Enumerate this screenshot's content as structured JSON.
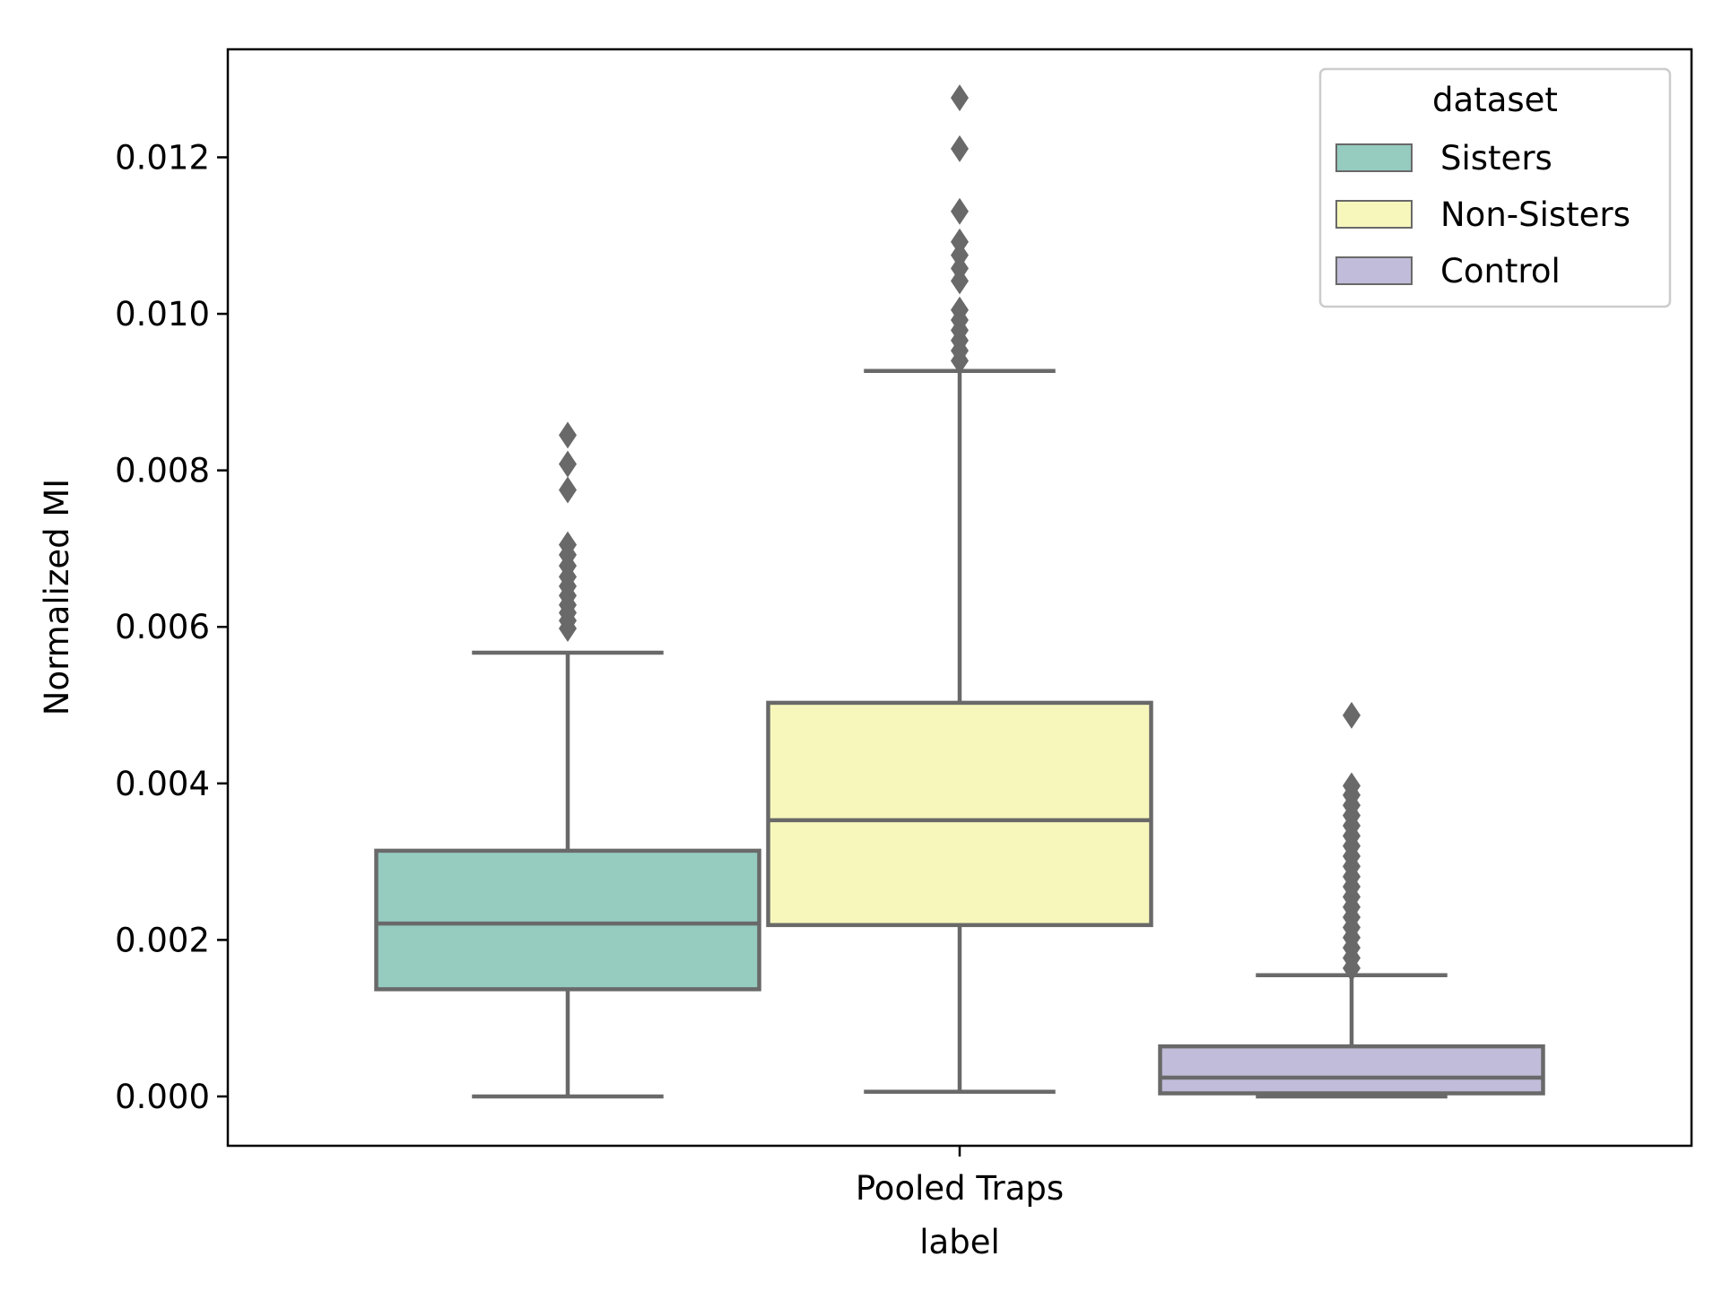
{
  "chart_data": {
    "type": "box",
    "xlabel": "label",
    "ylabel": "Normalized MI",
    "categories": [
      "Pooled Traps"
    ],
    "ylim": [
      -0.00063,
      0.01338
    ],
    "yticks": [
      0.0,
      0.002,
      0.004,
      0.006,
      0.008,
      0.01,
      0.012
    ],
    "ytick_labels": [
      "0.000",
      "0.002",
      "0.004",
      "0.006",
      "0.008",
      "0.010",
      "0.012"
    ],
    "grid": false,
    "legend": {
      "title": "dataset",
      "position": "top-right"
    },
    "series": [
      {
        "name": "Sisters",
        "color": "#96cbc0",
        "whisker_low": 0.0,
        "q1": 0.00137,
        "median": 0.00221,
        "q3": 0.00314,
        "whisker_high": 0.00567,
        "outliers": [
          0.00845,
          0.00808,
          0.00775,
          0.00705,
          0.00692,
          0.00678,
          0.00664,
          0.00652,
          0.0064,
          0.00628,
          0.00618,
          0.00608,
          0.00598
        ]
      },
      {
        "name": "Non-Sisters",
        "color": "#f7f7bc",
        "whisker_low": 6e-05,
        "q1": 0.00219,
        "median": 0.00353,
        "q3": 0.00503,
        "whisker_high": 0.00927,
        "outliers": [
          0.01276,
          0.01211,
          0.01131,
          0.01092,
          0.01075,
          0.01058,
          0.01042,
          0.01005,
          0.00992,
          0.00979,
          0.00966,
          0.00953,
          0.0094
        ]
      },
      {
        "name": "Control",
        "color": "#c1bcd9",
        "whisker_low": 0.0,
        "q1": 4e-05,
        "median": 0.00024,
        "q3": 0.00064,
        "whisker_high": 0.00155,
        "outliers": [
          0.00487,
          0.00397,
          0.00385,
          0.00372,
          0.00359,
          0.00346,
          0.00333,
          0.0032,
          0.00307,
          0.00294,
          0.00281,
          0.00268,
          0.00255,
          0.00242,
          0.00229,
          0.00216,
          0.00203,
          0.0019,
          0.00177,
          0.00164
        ]
      }
    ]
  }
}
